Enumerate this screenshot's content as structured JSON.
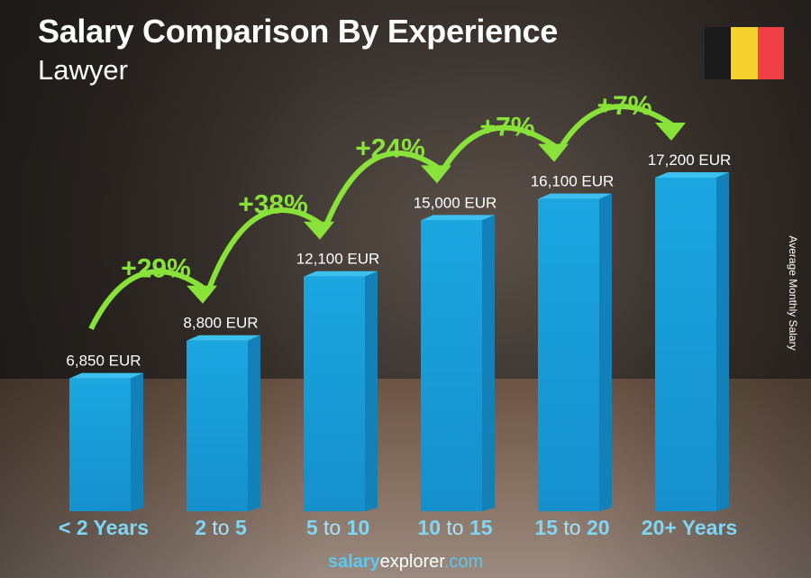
{
  "header": {
    "title": "Salary Comparison By Experience",
    "subtitle": "Lawyer"
  },
  "flag": {
    "country": "Belgium",
    "colors": [
      "#1a1a1a",
      "#f5d130",
      "#ef4048"
    ]
  },
  "footer": {
    "part1": "salary",
    "part2": "explorer",
    ".com": ".com"
  },
  "chart_data": {
    "type": "bar",
    "title": "Salary Comparison By Experience",
    "subtitle": "Lawyer",
    "ylabel": "Average Monthly Salary",
    "categories": [
      [
        "<",
        "2",
        "Years"
      ],
      [
        "2",
        "to",
        "5"
      ],
      [
        "5",
        "to",
        "10"
      ],
      [
        "10",
        "to",
        "15"
      ],
      [
        "15",
        "to",
        "20"
      ],
      [
        "20+",
        "Years"
      ]
    ],
    "values": [
      6850,
      8800,
      12100,
      15000,
      16100,
      17200
    ],
    "value_labels": [
      "6,850 EUR",
      "8,800 EUR",
      "12,100 EUR",
      "15,000 EUR",
      "16,100 EUR",
      "17,200 EUR"
    ],
    "changes": [
      "+29%",
      "+38%",
      "+24%",
      "+7%",
      "+7%"
    ],
    "unit": "EUR",
    "colors": {
      "bar": "#1ba6e0",
      "bar_side": "#1380b8",
      "bar_top": "#3cc0f0",
      "change": "#88e23a",
      "category": "#7fd6f5"
    }
  }
}
